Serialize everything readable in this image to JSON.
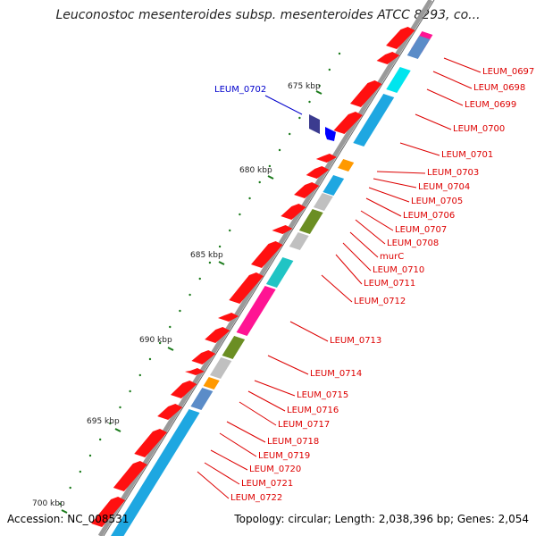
{
  "title": "Leuconostoc mesenteroides subsp. mesenteroides ATCC 8293, co...",
  "footer": {
    "accession": "Accession: NC_008531",
    "summary": "Topology: circular; Length: 2,038,396 bp; Genes: 2,054"
  },
  "colors": {
    "backbone": "#9a9a9a",
    "ring_line": "#666666",
    "cds_forward": "#ff1010",
    "label_red": "#dd0000",
    "label_blue": "#0000cc",
    "tick_green": "#1a7a1a"
  },
  "ruler": [
    {
      "label": "675 kbp"
    },
    {
      "label": "680 kbp"
    },
    {
      "label": "685 kbp"
    },
    {
      "label": "690 kbp"
    },
    {
      "label": "695 kbp"
    },
    {
      "label": "700 kbp"
    }
  ],
  "highlight_label": "LEUM_0702",
  "gene_labels": [
    "LEUM_0697",
    "LEUM_0698",
    "LEUM_0699",
    "LEUM_0700",
    "LEUM_0701",
    "LEUM_0703",
    "LEUM_0704",
    "LEUM_0705",
    "LEUM_0706",
    "LEUM_0707",
    "LEUM_0708",
    "murC",
    "LEUM_0710",
    "LEUM_0711",
    "LEUM_0712",
    "LEUM_0713",
    "LEUM_0714",
    "LEUM_0715",
    "LEUM_0716",
    "LEUM_0717",
    "LEUM_0718",
    "LEUM_0719",
    "LEUM_0720",
    "LEUM_0721",
    "LEUM_0722"
  ],
  "cog_blocks": [
    {
      "color": "#ff1493"
    },
    {
      "color": "#5b8cc8"
    },
    {
      "color": "#00e5ee"
    },
    {
      "color": "#1ea7e1"
    },
    {
      "color": "#ff9900"
    },
    {
      "color": "#1ea7e1"
    },
    {
      "color": "#c0c0c0"
    },
    {
      "color": "#6b8e23"
    },
    {
      "color": "#c0c0c0"
    },
    {
      "color": "#20c4c4"
    },
    {
      "color": "#ff1493"
    },
    {
      "color": "#6b8e23"
    },
    {
      "color": "#c0c0c0"
    },
    {
      "color": "#ff9900"
    },
    {
      "color": "#5b8cc8"
    },
    {
      "color": "#1ea7e1"
    }
  ]
}
